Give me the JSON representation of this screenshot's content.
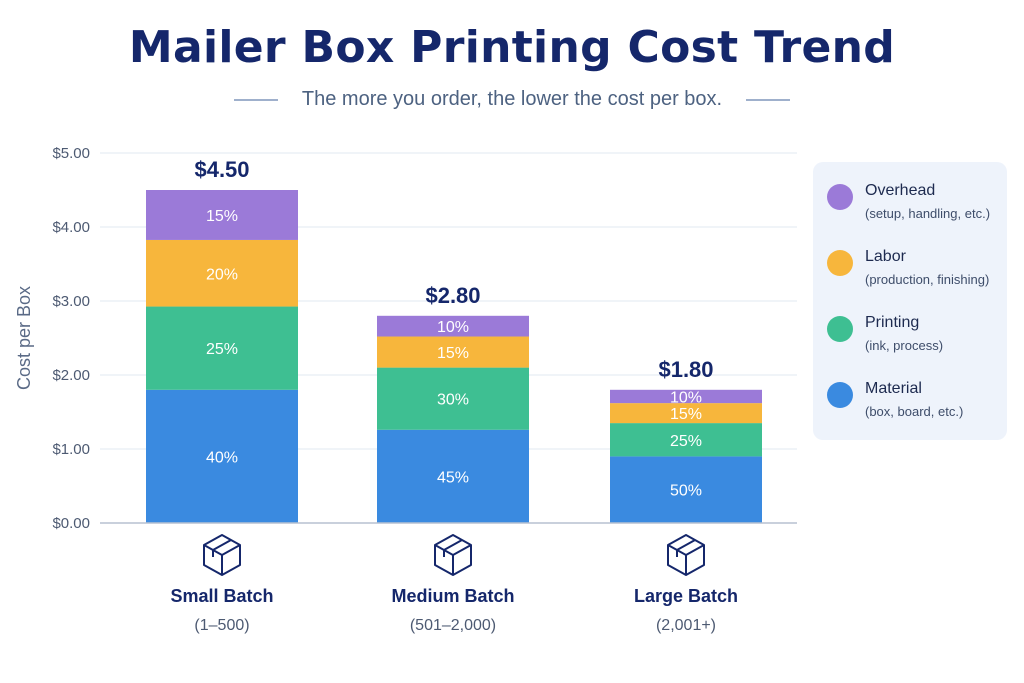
{
  "title": "Mailer Box Printing Cost Trend",
  "subtitle": "The more you order, the lower the cost per box.",
  "colors": {
    "Overhead": "#9b7ad8",
    "Labor": "#f7b63c",
    "Printing": "#3ebf92",
    "Material": "#3a8ae0"
  },
  "chart_data": {
    "type": "bar",
    "stacked": true,
    "ylabel": "Cost per Box",
    "ylim": [
      0,
      5
    ],
    "yticks": [
      "$0.00",
      "$1.00",
      "$2.00",
      "$3.00",
      "$4.00",
      "$5.00"
    ],
    "grid": true,
    "legend_position": "right",
    "categories": [
      {
        "name": "Small Batch",
        "range": "(1–500)",
        "total": 4.5,
        "total_label": "$4.50",
        "icon": "box-icon"
      },
      {
        "name": "Medium Batch",
        "range": "(501–2,000)",
        "total": 2.8,
        "total_label": "$2.80",
        "icon": "box-icon"
      },
      {
        "name": "Large Batch",
        "range": "(2,001+)",
        "total": 1.8,
        "total_label": "$1.80",
        "icon": "box-icon"
      }
    ],
    "series": [
      {
        "name": "Material",
        "percent": [
          40,
          45,
          50
        ],
        "labels": [
          "40%",
          "45%",
          "50%"
        ]
      },
      {
        "name": "Printing",
        "percent": [
          25,
          30,
          25
        ],
        "labels": [
          "25%",
          "30%",
          "25%"
        ]
      },
      {
        "name": "Labor",
        "percent": [
          20,
          15,
          15
        ],
        "labels": [
          "20%",
          "15%",
          "15%"
        ]
      },
      {
        "name": "Overhead",
        "percent": [
          15,
          10,
          10
        ],
        "labels": [
          "15%",
          "10%",
          "10%"
        ]
      }
    ]
  },
  "legend": [
    {
      "name": "Overhead",
      "desc": "(setup, handling, etc.)"
    },
    {
      "name": "Labor",
      "desc": "(production, finishing)"
    },
    {
      "name": "Printing",
      "desc": "(ink, process)"
    },
    {
      "name": "Material",
      "desc": "(box, board, etc.)"
    }
  ]
}
